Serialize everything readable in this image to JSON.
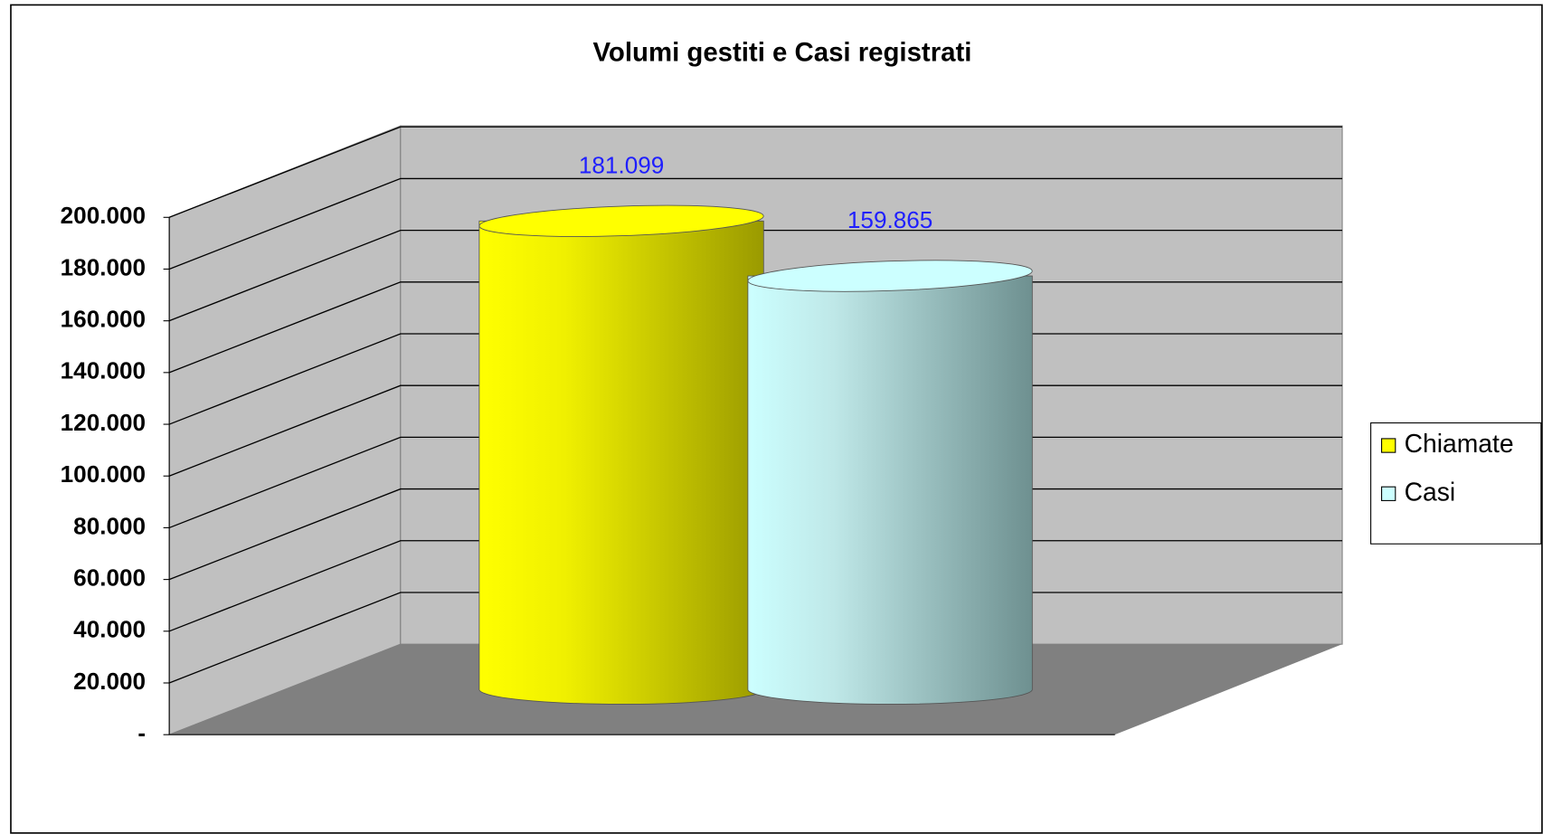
{
  "chart_data": {
    "type": "bar3d",
    "title": "Volumi gestiti e Casi registrati",
    "categories": [
      null
    ],
    "series": [
      {
        "name": "Chiamate",
        "color": "#ffff00",
        "values": [
          181099
        ],
        "value_labels": [
          "181.099"
        ]
      },
      {
        "name": "Casi",
        "color": "#ccffff",
        "values": [
          159865
        ],
        "value_labels": [
          "159.865"
        ]
      }
    ],
    "ylim": [
      0,
      200000
    ],
    "yticks": [
      {
        "value": 0,
        "label": "-"
      },
      {
        "value": 20000,
        "label": "20.000"
      },
      {
        "value": 40000,
        "label": "40.000"
      },
      {
        "value": 60000,
        "label": "60.000"
      },
      {
        "value": 80000,
        "label": "80.000"
      },
      {
        "value": 100000,
        "label": "100.000"
      },
      {
        "value": 120000,
        "label": "120.000"
      },
      {
        "value": 140000,
        "label": "140.000"
      },
      {
        "value": 160000,
        "label": "160.000"
      },
      {
        "value": 180000,
        "label": "180.000"
      },
      {
        "value": 200000,
        "label": "200.000"
      }
    ],
    "grid": true,
    "legend": "right"
  }
}
